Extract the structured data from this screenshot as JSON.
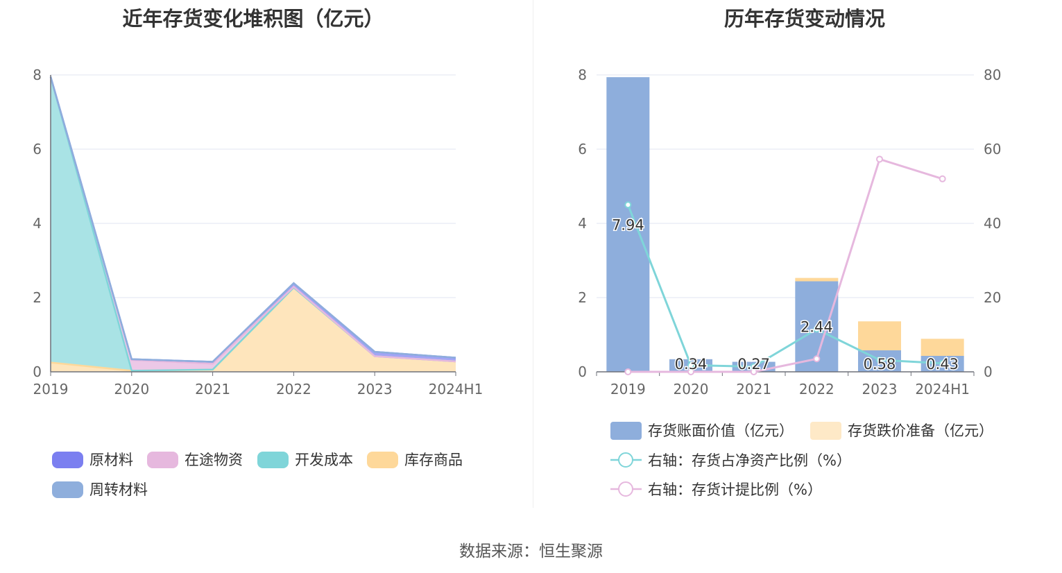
{
  "chart_data": [
    {
      "type": "area",
      "stacked": true,
      "title": "近年存货变化堆积图（亿元）",
      "categories": [
        "2019",
        "2020",
        "2021",
        "2022",
        "2023",
        "2024H1"
      ],
      "y_ticks": [
        "0",
        "2",
        "4",
        "6",
        "8"
      ],
      "ylim": [
        0,
        8
      ],
      "grid": true,
      "legend_position": "bottom",
      "series": [
        {
          "name": "原材料",
          "color": "#7b7ff0",
          "area_color": "#a2a5f5",
          "values": [
            0.0,
            0.02,
            0.05,
            0.1,
            0.12,
            0.1
          ]
        },
        {
          "name": "在途物资",
          "color": "#e6b8de",
          "area_color": "#ecc8e7",
          "values": [
            0.0,
            0.29,
            0.16,
            0.02,
            0.0,
            0.0
          ]
        },
        {
          "name": "开发成本",
          "color": "#7fd5d9",
          "area_color": "#a9e3e5",
          "values": [
            7.7,
            0.0,
            0.0,
            0.0,
            0.0,
            0.0
          ]
        },
        {
          "name": "库存商品",
          "color": "#fed89a",
          "area_color": "#fee5bc",
          "values": [
            0.25,
            0.03,
            0.06,
            2.27,
            0.42,
            0.28
          ]
        },
        {
          "name": "周转材料",
          "color": "#8eaedc",
          "area_color": "#b3c9ea",
          "values": [
            0.0,
            0.0,
            0.0,
            0.0,
            0.0,
            0.0
          ]
        }
      ]
    },
    {
      "type": "bar",
      "title": "历年存货变动情况",
      "categories": [
        "2019",
        "2020",
        "2021",
        "2022",
        "2023",
        "2024H1"
      ],
      "y_ticks": [
        "0",
        "2",
        "4",
        "6",
        "8"
      ],
      "y2_ticks": [
        "0",
        "20",
        "40",
        "60",
        "80"
      ],
      "ylim": [
        0,
        8
      ],
      "y2lim": [
        0,
        80
      ],
      "grid": true,
      "legend_position": "bottom",
      "bar_series": [
        {
          "name": "存货账面价值（亿元）",
          "color": "#8eaedc",
          "values": [
            7.94,
            0.34,
            0.27,
            2.44,
            0.58,
            0.43
          ],
          "labels": [
            "7.94",
            "0.34",
            "0.27",
            "2.44",
            "0.58",
            "0.43"
          ]
        },
        {
          "name": "存货跌价准备（亿元）",
          "color": "#fed89a",
          "legend_color": "#fee9c7",
          "values": [
            0.0,
            0.0,
            0.0,
            0.09,
            0.78,
            0.46
          ]
        }
      ],
      "line_series": [
        {
          "name": "右轴：存货占净资产比例（%）",
          "color": "#7fd5d9",
          "values": [
            45.0,
            1.8,
            1.4,
            11.5,
            3.2,
            2.3
          ]
        },
        {
          "name": "右轴：存货计提比例（%）",
          "color": "#e6b8de",
          "values": [
            0.0,
            0.0,
            0.0,
            3.5,
            57.3,
            52.0
          ]
        }
      ]
    }
  ],
  "source": "数据来源：恒生聚源"
}
